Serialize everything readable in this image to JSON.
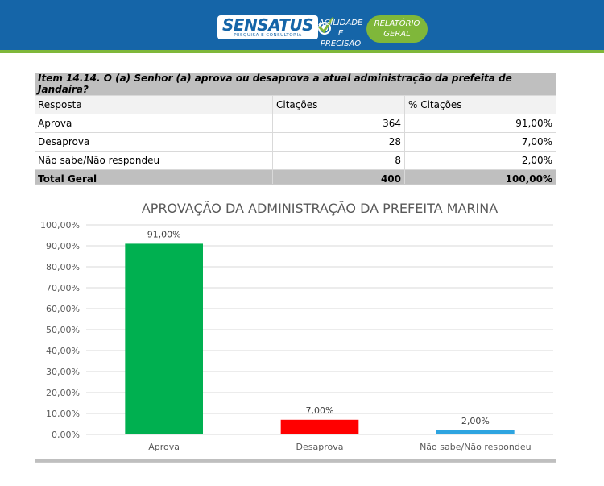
{
  "header": {
    "logo_text": "SENSATUS",
    "logo_subtext": "PESQUISA E CONSULTORIA",
    "tagline_line1": "AGILIDADE E",
    "tagline_line2": "PRECISÃO",
    "badge_line1": "RELATÓRIO",
    "badge_line2": "GERAL",
    "colors": {
      "header_bg": "#1565a8",
      "accent_green": "#7fb73a"
    }
  },
  "table": {
    "title": "Item 14.14. O (a) Senhor (a) aprova ou desaprova a atual administração da prefeita de Jandaíra?",
    "headers": [
      "Resposta",
      "Citações",
      "% Citações"
    ],
    "rows": [
      [
        "Aprova",
        "364",
        "91,00%"
      ],
      [
        "Desaprova",
        "28",
        "7,00%"
      ],
      [
        "Não sabe/Não respondeu",
        "8",
        "2,00%"
      ]
    ],
    "total": [
      "Total Geral",
      "400",
      "100,00%"
    ]
  },
  "chart_data": {
    "type": "bar",
    "title": "APROVAÇÃO DA ADMINISTRAÇÃO DA PREFEITA MARINA",
    "categories": [
      "Aprova",
      "Desaprova",
      "Não sabe/Não respondeu"
    ],
    "values": [
      91.0,
      7.0,
      2.0
    ],
    "value_labels": [
      "91,00%",
      "7,00%",
      "2,00%"
    ],
    "colors": [
      "#00b050",
      "#ff0000",
      "#2ea4e0"
    ],
    "ylim": [
      0,
      100
    ],
    "yticks": [
      0,
      10,
      20,
      30,
      40,
      50,
      60,
      70,
      80,
      90,
      100
    ],
    "ytick_labels": [
      "0,00%",
      "10,00%",
      "20,00%",
      "30,00%",
      "40,00%",
      "50,00%",
      "60,00%",
      "70,00%",
      "80,00%",
      "90,00%",
      "100,00%"
    ],
    "grid": true,
    "legend": "none"
  }
}
